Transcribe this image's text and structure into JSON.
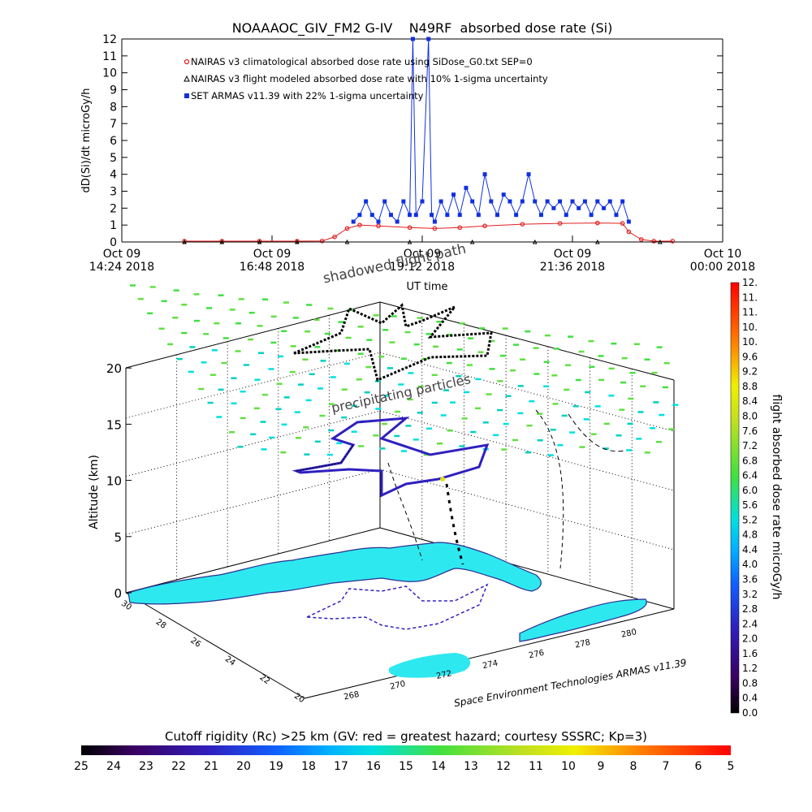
{
  "chart_data": [
    {
      "type": "line",
      "title": "NOAAAOC_GIV_FM2 G-IV    N49RF  absorbed dose rate (Si)",
      "ylabel": "dD(Si)/dt microGy/h",
      "xlabel": "UT time",
      "ylim": [
        0,
        12
      ],
      "yticks": [
        "0",
        "1",
        "2",
        "3",
        "4",
        "5",
        "6",
        "7",
        "8",
        "9",
        "10",
        "11",
        "12"
      ],
      "xtick_labels": [
        {
          "top": "Oct 09",
          "bottom": "14:24 2018"
        },
        {
          "top": "Oct 09",
          "bottom": "16:48 2018"
        },
        {
          "top": "Oct 09",
          "bottom": "19:12 2018"
        },
        {
          "top": "Oct 09",
          "bottom": "21:36 2018"
        },
        {
          "top": "Oct 10",
          "bottom": "00:00 2018"
        }
      ],
      "legend_position": "top-left",
      "series": [
        {
          "name": "NAIRAS v3 climatological absorbed dose rate using SiDose_G0.txt SEP=0",
          "color": "#e02020",
          "marker": "circle",
          "points": [
            [
              15.4,
              0.05
            ],
            [
              16.0,
              0.05
            ],
            [
              16.6,
              0.05
            ],
            [
              17.2,
              0.05
            ],
            [
              17.6,
              0.06
            ],
            [
              17.8,
              0.3
            ],
            [
              18.0,
              0.8
            ],
            [
              18.2,
              1.0
            ],
            [
              18.5,
              0.95
            ],
            [
              19.0,
              0.85
            ],
            [
              19.4,
              0.8
            ],
            [
              19.8,
              0.85
            ],
            [
              20.2,
              0.95
            ],
            [
              20.8,
              1.05
            ],
            [
              21.4,
              1.1
            ],
            [
              22.0,
              1.12
            ],
            [
              22.4,
              1.1
            ],
            [
              22.5,
              0.6
            ],
            [
              22.7,
              0.15
            ],
            [
              22.9,
              0.05
            ],
            [
              23.2,
              0.05
            ]
          ]
        },
        {
          "name": "NAIRAS v3 flight modeled absorbed dose rate with 10% 1-sigma uncertainty",
          "color": "#000000",
          "marker": "triangle",
          "points": [
            [
              15.4,
              0.0
            ],
            [
              16.0,
              0.0
            ],
            [
              16.6,
              0.0
            ],
            [
              17.2,
              0.0
            ],
            [
              18.0,
              0.0
            ],
            [
              19.0,
              0.0
            ],
            [
              20.0,
              0.0
            ],
            [
              21.0,
              0.0
            ],
            [
              22.0,
              0.0
            ],
            [
              23.0,
              0.0
            ]
          ]
        },
        {
          "name": "SET ARMAS v11.39 with 22% 1-sigma uncertainty",
          "color": "#1030e0",
          "marker": "square",
          "points": [
            [
              18.1,
              1.2
            ],
            [
              18.2,
              1.6
            ],
            [
              18.3,
              2.4
            ],
            [
              18.4,
              1.6
            ],
            [
              18.5,
              1.2
            ],
            [
              18.6,
              2.4
            ],
            [
              18.7,
              1.6
            ],
            [
              18.8,
              1.2
            ],
            [
              18.9,
              2.4
            ],
            [
              19.0,
              1.6
            ],
            [
              19.05,
              12.5
            ],
            [
              19.1,
              1.6
            ],
            [
              19.2,
              2.4
            ],
            [
              19.3,
              12.5
            ],
            [
              19.35,
              1.6
            ],
            [
              19.4,
              1.2
            ],
            [
              19.5,
              2.4
            ],
            [
              19.6,
              1.6
            ],
            [
              19.7,
              2.8
            ],
            [
              19.8,
              1.6
            ],
            [
              19.9,
              3.2
            ],
            [
              20.0,
              2.4
            ],
            [
              20.1,
              1.6
            ],
            [
              20.2,
              4.0
            ],
            [
              20.3,
              2.4
            ],
            [
              20.4,
              1.6
            ],
            [
              20.5,
              2.8
            ],
            [
              20.6,
              2.4
            ],
            [
              20.7,
              1.6
            ],
            [
              20.8,
              2.4
            ],
            [
              20.9,
              4.0
            ],
            [
              21.0,
              2.4
            ],
            [
              21.1,
              1.6
            ],
            [
              21.2,
              2.4
            ],
            [
              21.3,
              2.0
            ],
            [
              21.4,
              2.4
            ],
            [
              21.5,
              1.6
            ],
            [
              21.6,
              2.4
            ],
            [
              21.7,
              2.0
            ],
            [
              21.8,
              2.4
            ],
            [
              21.9,
              1.6
            ],
            [
              22.0,
              2.4
            ],
            [
              22.1,
              2.0
            ],
            [
              22.2,
              2.4
            ],
            [
              22.3,
              1.6
            ],
            [
              22.4,
              2.4
            ],
            [
              22.5,
              1.2
            ]
          ]
        }
      ]
    },
    {
      "type": "scatter",
      "subtype": "3d-flight-track",
      "zlabel": "Altitude (km)",
      "zticks": [
        "0",
        "5",
        "10",
        "15",
        "20"
      ],
      "lat_ticks": [
        "30",
        "28",
        "26",
        "24",
        "22",
        "20"
      ],
      "lon_ticks": [
        "268",
        "270",
        "272",
        "274",
        "276",
        "278",
        "280"
      ],
      "colorbar": {
        "label": "flight absorbed dose rate microGy/h",
        "ticks": [
          "0.0",
          "0.4",
          "0.8",
          "1.2",
          "1.6",
          "2.0",
          "2.4",
          "2.8",
          "3.2",
          "3.6",
          "4.0",
          "4.4",
          "4.8",
          "5.2",
          "5.6",
          "6.0",
          "6.4",
          "6.8",
          "7.2",
          "7.6",
          "8.0",
          "8.4",
          "8.8",
          "9.2",
          "9.6",
          "10.",
          "10.",
          "11.",
          "11.",
          "12."
        ]
      },
      "annotations": [
        "shadowed flight path",
        "precipitating particles"
      ],
      "credit": "Space Environment Technologies ARMAS v11.39"
    },
    {
      "type": "colorbar",
      "title": "Cutoff rigidity (Rc) >25 km (GV: red = greatest hazard; courtesy SSSRC; Kp=3)",
      "ticks": [
        "25",
        "24",
        "23",
        "22",
        "21",
        "20",
        "19",
        "18",
        "17",
        "16",
        "15",
        "14",
        "13",
        "12",
        "11",
        "10",
        "9",
        "8",
        "7",
        "6",
        "5"
      ]
    }
  ],
  "colors": {
    "rainbow": [
      "#000000",
      "#3a0060",
      "#3020c0",
      "#1060ff",
      "#00b0ff",
      "#00e0e0",
      "#20e0a0",
      "#40e040",
      "#a0e020",
      "#f0f000",
      "#ff9000",
      "#ff3000",
      "#ff0000"
    ]
  }
}
